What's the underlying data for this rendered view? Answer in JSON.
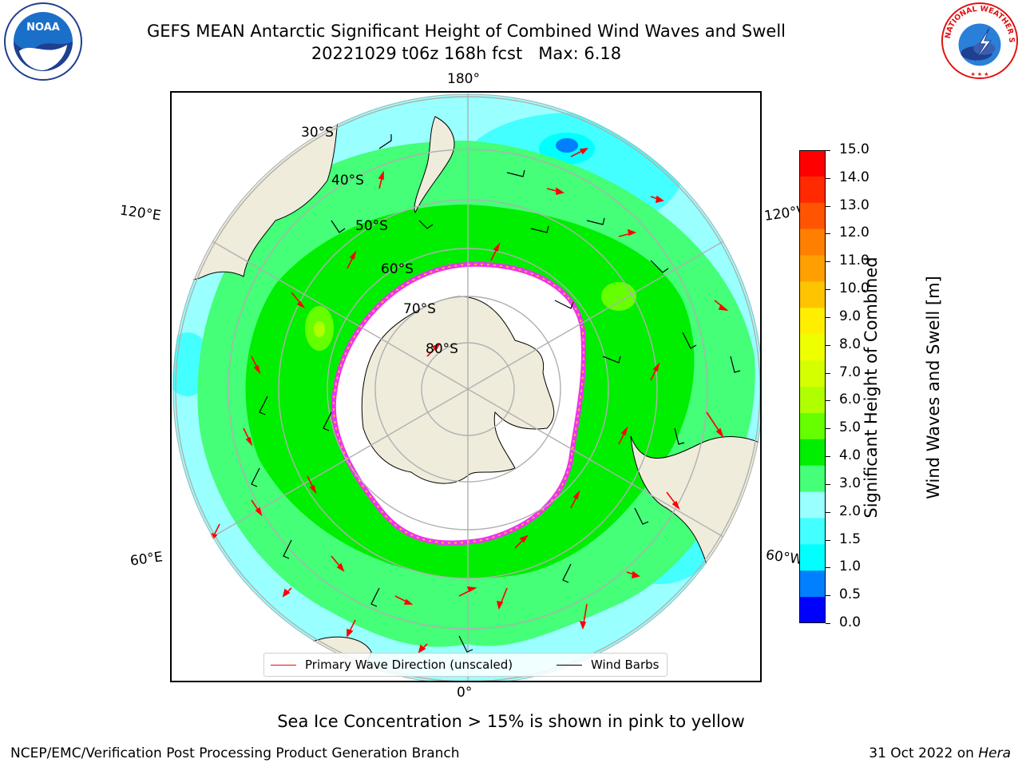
{
  "title": {
    "line1": "GEFS MEAN Antarctic Significant Height of Combined Wind Waves and Swell",
    "line2": "20221029 t06z 168h fcst   Max: 6.18"
  },
  "map": {
    "projection": "south-polar-stereographic",
    "longitude_labels": {
      "top": "180°",
      "bottom": "0°",
      "upper_left": "120°E",
      "upper_right": "120°W",
      "lower_left": "60°E",
      "lower_right": "60°W"
    },
    "latitude_labels": [
      "30°S",
      "40°S",
      "50°S",
      "60°S",
      "70°S",
      "80°S"
    ],
    "colors": {
      "land": "#efecdc",
      "ice_interior": "#ffffff",
      "sea_ice_edge": "#ee33ee",
      "sea_ice_yellow": "#ffb040",
      "wave_arrow": "#ff0000",
      "wind_barb": "#000000",
      "graticule": "#b0b0b0"
    },
    "legend": {
      "wave": "Primary Wave Direction (unscaled)",
      "wind": "Wind Barbs"
    }
  },
  "colorbar": {
    "label_line1": "Significant Height of Combined",
    "label_line2": "Wind Waves and Swell [m]",
    "ticks": [
      "15.0",
      "14.0",
      "13.0",
      "12.0",
      "11.0",
      "10.0",
      "9.0",
      "8.0",
      "7.0",
      "6.0",
      "5.0",
      "4.0",
      "3.0",
      "2.0",
      "1.5",
      "1.0",
      "0.5",
      "0.0"
    ],
    "colors": [
      "#ff0000",
      "#ff2a00",
      "#ff5500",
      "#ff8000",
      "#ffa000",
      "#ffc400",
      "#ffee00",
      "#f0ff00",
      "#d4ff00",
      "#b0ff00",
      "#66ff00",
      "#00ee00",
      "#44ff77",
      "#99ffff",
      "#44ffff",
      "#00ffff",
      "#0080ff",
      "#0000ff"
    ]
  },
  "notes": {
    "ice": "Sea Ice Concentration > 15% is shown in pink to yellow"
  },
  "footer": {
    "left": "NCEP/EMC/Verification Post Processing Product Generation Branch",
    "date": "31 Oct 2022 on",
    "host": "Hera"
  },
  "logos": {
    "left": "NOAA",
    "right": "NATIONAL WEATHER SERVICE"
  }
}
